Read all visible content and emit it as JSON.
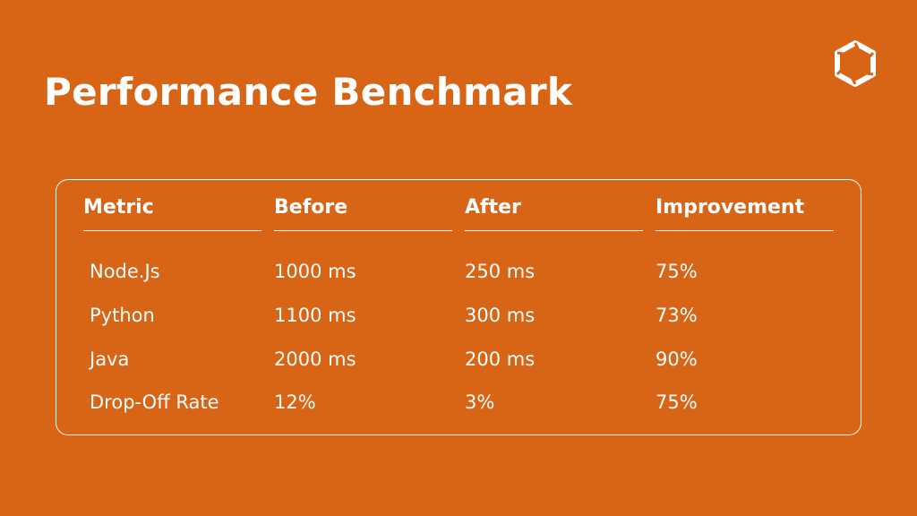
{
  "header": {
    "title": "Performance Benchmark"
  },
  "table": {
    "columns": [
      "Metric",
      "Before",
      "After",
      "Improvement"
    ],
    "rows": [
      [
        "Node.Js",
        "1000 ms",
        "250 ms",
        "75%"
      ],
      [
        "Python",
        "1100 ms",
        "300 ms",
        "73%"
      ],
      [
        "Java",
        "2000 ms",
        "200 ms",
        "90%"
      ],
      [
        "Drop-Off Rate",
        "12%",
        "3%",
        "75%"
      ]
    ]
  }
}
